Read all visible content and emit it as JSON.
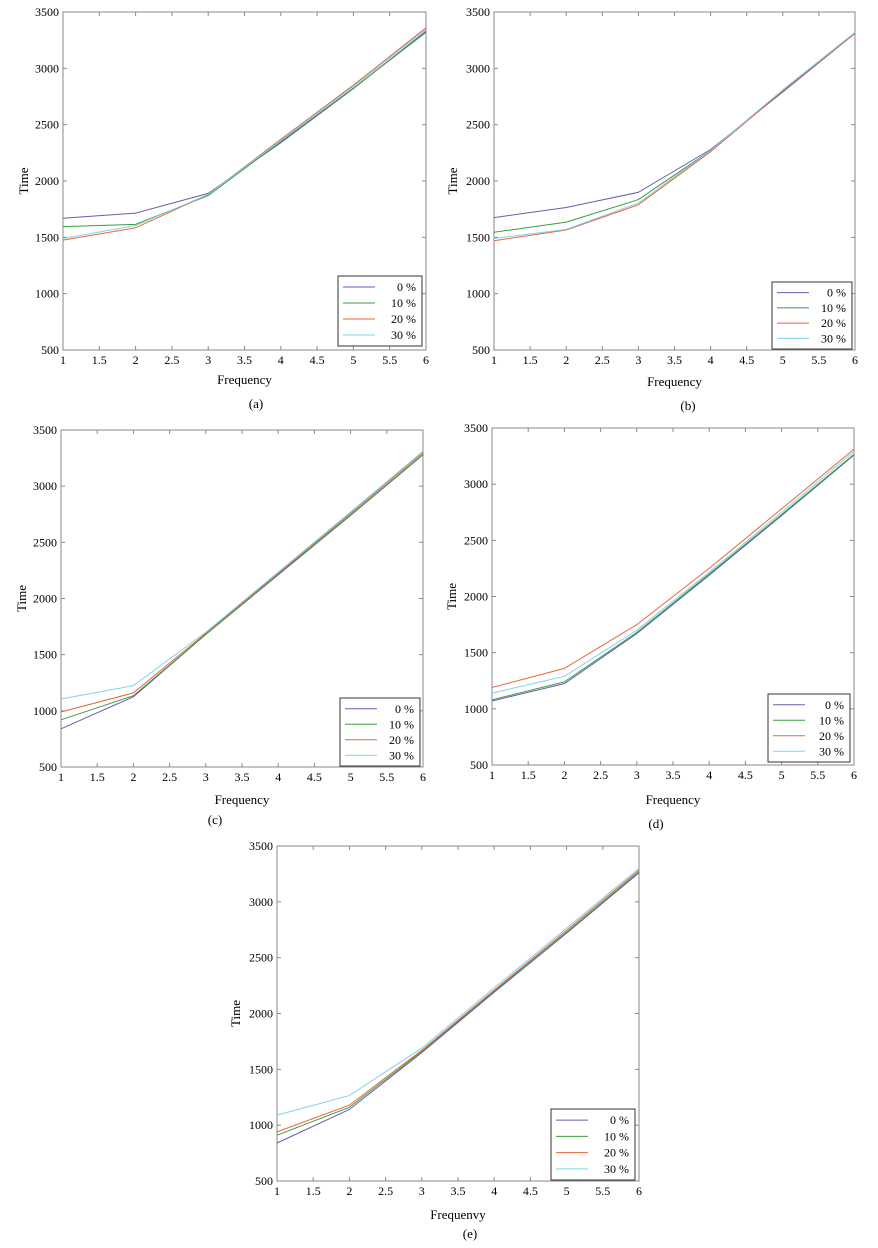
{
  "chart_data": [
    {
      "type": "line",
      "caption": "(a)",
      "xlabel": "Frequency",
      "ylabel": "Time",
      "xlim": [
        1,
        6
      ],
      "ylim": [
        500,
        3500
      ],
      "xticks": [
        "1",
        "1.5",
        "2",
        "2.5",
        "3",
        "3.5",
        "4",
        "4.5",
        "5",
        "5.5",
        "6"
      ],
      "yticks": [
        "500",
        "1000",
        "1500",
        "2000",
        "2500",
        "3000",
        "3500"
      ],
      "x": [
        1,
        2,
        3,
        4,
        5,
        6
      ],
      "series": [
        {
          "name": "0 %",
          "values": [
            1670,
            1715,
            1890,
            2340,
            2820,
            3330
          ]
        },
        {
          "name": "10 %",
          "values": [
            1595,
            1615,
            1870,
            2350,
            2825,
            3320
          ]
        },
        {
          "name": "20 %",
          "values": [
            1475,
            1585,
            1880,
            2370,
            2850,
            3360
          ]
        },
        {
          "name": "30 %",
          "values": [
            1490,
            1605,
            1880,
            2360,
            2840,
            3345
          ]
        }
      ],
      "legend": "bottom-right"
    },
    {
      "type": "line",
      "caption": "(b)",
      "xlabel": "Frequency",
      "ylabel": "Time",
      "xlim": [
        1,
        6
      ],
      "ylim": [
        500,
        3500
      ],
      "xticks": [
        "1",
        "1.5",
        "2",
        "2.5",
        "3",
        "3.5",
        "4",
        "4.5",
        "5",
        "5.5",
        "6"
      ],
      "yticks": [
        "500",
        "1000",
        "1500",
        "2000",
        "2500",
        "3000",
        "3500"
      ],
      "x": [
        1,
        2,
        3,
        4,
        5,
        6
      ],
      "series": [
        {
          "name": "0 %",
          "values": [
            1675,
            1765,
            1900,
            2280,
            2790,
            3310
          ]
        },
        {
          "name": "10 %",
          "values": [
            1545,
            1635,
            1835,
            2270,
            2800,
            3310
          ]
        },
        {
          "name": "20 %",
          "values": [
            1470,
            1565,
            1790,
            2260,
            2800,
            3310
          ]
        },
        {
          "name": "30 %",
          "values": [
            1490,
            1570,
            1805,
            2270,
            2810,
            3320
          ]
        }
      ],
      "legend": "bottom-right"
    },
    {
      "type": "line",
      "caption": "(c)",
      "xlabel": "Frequency",
      "ylabel": "Time",
      "xlim": [
        1,
        6
      ],
      "ylim": [
        500,
        3500
      ],
      "xticks": [
        "1",
        "1.5",
        "2",
        "2.5",
        "3",
        "3.5",
        "4",
        "4.5",
        "5",
        "5.5",
        "6"
      ],
      "yticks": [
        "500",
        "1000",
        "1500",
        "2000",
        "2500",
        "3000",
        "3500"
      ],
      "x": [
        1,
        2,
        3,
        4,
        5,
        6
      ],
      "series": [
        {
          "name": "0 %",
          "values": [
            840,
            1125,
            1680,
            2210,
            2740,
            3280
          ]
        },
        {
          "name": "10 %",
          "values": [
            920,
            1135,
            1680,
            2215,
            2745,
            3285
          ]
        },
        {
          "name": "20 %",
          "values": [
            990,
            1160,
            1690,
            2225,
            2760,
            3300
          ]
        },
        {
          "name": "30 %",
          "values": [
            1105,
            1225,
            1700,
            2235,
            2770,
            3310
          ]
        }
      ],
      "legend": "bottom-right"
    },
    {
      "type": "line",
      "caption": "(d)",
      "xlabel": "Frequency",
      "ylabel": "Time",
      "xlim": [
        1,
        6
      ],
      "ylim": [
        500,
        3500
      ],
      "xticks": [
        "1",
        "1.5",
        "2",
        "2.5",
        "3",
        "3.5",
        "4",
        "4.5",
        "5",
        "5.5",
        "6"
      ],
      "yticks": [
        "500",
        "1000",
        "1500",
        "2000",
        "2500",
        "3000",
        "3500"
      ],
      "x": [
        1,
        2,
        3,
        4,
        5,
        6
      ],
      "series": [
        {
          "name": "0 %",
          "values": [
            1070,
            1225,
            1670,
            2190,
            2720,
            3260
          ]
        },
        {
          "name": "10 %",
          "values": [
            1080,
            1240,
            1680,
            2200,
            2730,
            3265
          ]
        },
        {
          "name": "20 %",
          "values": [
            1190,
            1360,
            1750,
            2250,
            2780,
            3310
          ]
        },
        {
          "name": "30 %",
          "values": [
            1140,
            1290,
            1700,
            2215,
            2750,
            3290
          ]
        }
      ],
      "legend": "bottom-right"
    },
    {
      "type": "line",
      "caption": "(e)",
      "xlabel": "Frequenvy",
      "ylabel": "Time",
      "xlim": [
        1,
        6
      ],
      "ylim": [
        500,
        3500
      ],
      "xticks": [
        "1",
        "1.5",
        "2",
        "2.5",
        "3",
        "3.5",
        "4",
        "4.5",
        "5",
        "5.5",
        "6"
      ],
      "yticks": [
        "500",
        "1000",
        "1500",
        "2000",
        "2500",
        "3000",
        "3500"
      ],
      "x": [
        1,
        2,
        3,
        4,
        5,
        6
      ],
      "series": [
        {
          "name": "0 %",
          "values": [
            840,
            1140,
            1650,
            2190,
            2720,
            3260
          ]
        },
        {
          "name": "10 %",
          "values": [
            910,
            1160,
            1660,
            2200,
            2730,
            3270
          ]
        },
        {
          "name": "20 %",
          "values": [
            940,
            1180,
            1670,
            2210,
            2745,
            3285
          ]
        },
        {
          "name": "30 %",
          "values": [
            1090,
            1265,
            1690,
            2230,
            2765,
            3300
          ]
        }
      ],
      "legend": "bottom-right"
    }
  ],
  "colors": {
    "0 %": "#6b5bb3",
    "10 %": "#3f9a3f",
    "20 %": "#e8653a",
    "30 %": "#7fd3ec",
    "axis": "#8a8a8a",
    "text": "#000000"
  }
}
